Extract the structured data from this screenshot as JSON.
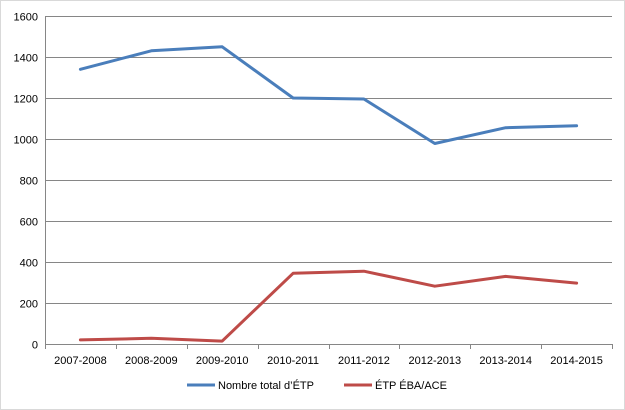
{
  "chart_data": {
    "type": "line",
    "title": "",
    "xlabel": "",
    "ylabel": "",
    "categories": [
      "2007-2008",
      "2008-2009",
      "2009-2010",
      "2010-2011",
      "2011-2012",
      "2012-2013",
      "2013-2014",
      "2014-2015"
    ],
    "ylim": [
      0,
      1600
    ],
    "yticks": [
      0,
      200,
      400,
      600,
      800,
      1000,
      1200,
      1400,
      1600
    ],
    "grid": "horizontal",
    "legend_position": "bottom",
    "series": [
      {
        "name": "Nombre total d’ÉTP",
        "color": "#4a7ebb",
        "values": [
          1340,
          1430,
          1450,
          1200,
          1195,
          978,
          1055,
          1065
        ]
      },
      {
        "name": "ÉTP ÉBA/ACE",
        "color": "#be4b48",
        "values": [
          20,
          28,
          14,
          345,
          355,
          282,
          330,
          297
        ]
      }
    ]
  }
}
